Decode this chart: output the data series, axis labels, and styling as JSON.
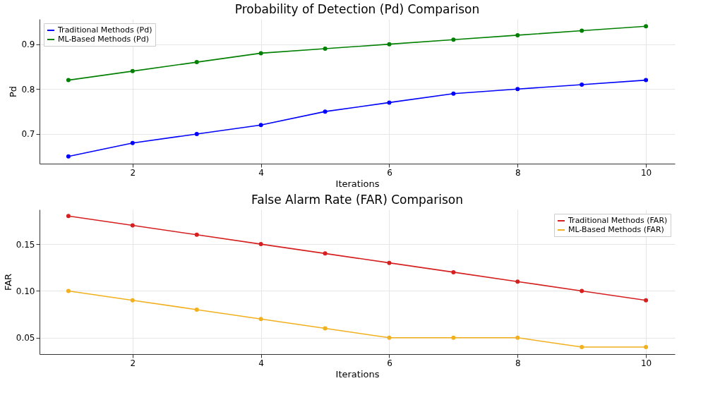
{
  "chart_data": [
    {
      "type": "line",
      "title": "Probability of Detection (Pd) Comparison",
      "xlabel": "Iterations",
      "ylabel": "Pd",
      "x": [
        1,
        2,
        3,
        4,
        5,
        6,
        7,
        8,
        9,
        10
      ],
      "series": [
        {
          "name": "Traditional Methods (Pd)",
          "color": "#0000ff",
          "values": [
            0.65,
            0.68,
            0.7,
            0.72,
            0.75,
            0.77,
            0.79,
            0.8,
            0.81,
            0.82
          ]
        },
        {
          "name": "ML-Based Methods (Pd)",
          "color": "#008000",
          "values": [
            0.82,
            0.84,
            0.86,
            0.88,
            0.89,
            0.9,
            0.91,
            0.92,
            0.93,
            0.94
          ]
        }
      ],
      "xlim": [
        0.55,
        10.45
      ],
      "xticks": [
        2,
        4,
        6,
        8,
        10
      ],
      "ylim": [
        0.634,
        0.956
      ],
      "yticks": [
        0.7,
        0.8,
        0.9
      ],
      "grid": true,
      "legend": "top left",
      "marker": "circle",
      "line_style": "solid"
    },
    {
      "type": "line",
      "title": "False Alarm Rate (FAR) Comparison",
      "xlabel": "Iterations",
      "ylabel": "FAR",
      "x": [
        1,
        2,
        3,
        4,
        5,
        6,
        7,
        8,
        9,
        10
      ],
      "series": [
        {
          "name": "Traditional Methods (FAR)",
          "color": "#d62020",
          "values": [
            0.18,
            0.17,
            0.16,
            0.15,
            0.14,
            0.13,
            0.12,
            0.11,
            0.1,
            0.09
          ]
        },
        {
          "name": "ML-Based Methods (FAR)",
          "color": "#f2b01e",
          "values": [
            0.1,
            0.09,
            0.08,
            0.07,
            0.06,
            0.05,
            0.05,
            0.05,
            0.04,
            0.04
          ]
        }
      ],
      "xlim": [
        0.55,
        10.45
      ],
      "xticks": [
        2,
        4,
        6,
        8,
        10
      ],
      "ylim": [
        0.0325,
        0.187
      ],
      "yticks": [
        {
          "value": 0.05,
          "label": "0.05"
        },
        {
          "value": 0.1,
          "label": "0.10"
        },
        0.15
      ],
      "grid": true,
      "legend": "top right",
      "marker": "circle",
      "line_style": "solid"
    }
  ]
}
